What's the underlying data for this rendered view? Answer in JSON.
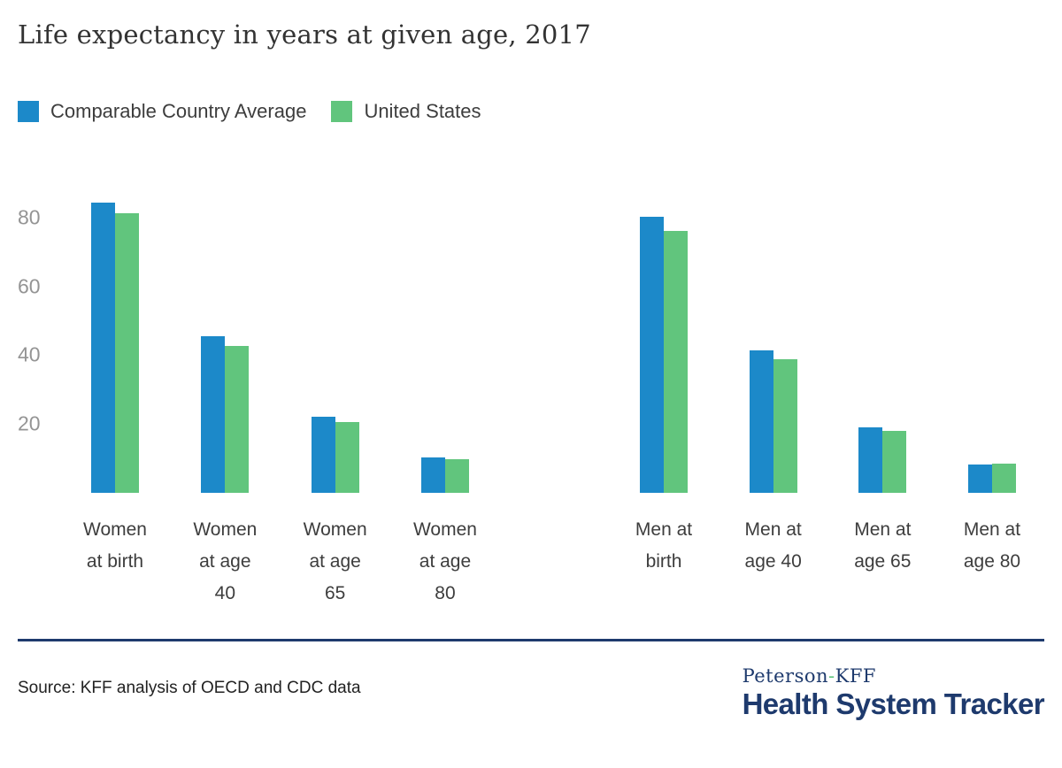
{
  "title": "Life expectancy in years at given age, 2017",
  "colors": {
    "blue": "#1c89c9",
    "green": "#61c57d",
    "navy": "#1e3a6d",
    "tick_gray": "#949494",
    "text_dark": "#3d3d3d"
  },
  "chart_data": {
    "type": "bar",
    "title": "Life expectancy in years at given age, 2017",
    "categories": [
      "Women at birth",
      "Women at age 40",
      "Women at age 65",
      "Women at age 80",
      "Men at birth",
      "Men at age 40",
      "Men at age 65",
      "Men at age 80"
    ],
    "category_label_lines": [
      "Women\nat birth",
      "Women\nat age\n40",
      "Women\nat age\n65",
      "Women\nat age\n80",
      "Men at\nbirth",
      "Men at\nage 40",
      "Men at\nage 65",
      "Men at\nage 80"
    ],
    "series": [
      {
        "name": "Comparable Country Average",
        "color": "#1c89c9",
        "values": [
          84.4,
          45.4,
          22.2,
          10.3,
          80.2,
          41.3,
          19.1,
          8.3
        ]
      },
      {
        "name": "United States",
        "color": "#61c57d",
        "values": [
          81.2,
          42.7,
          20.6,
          9.7,
          76.1,
          38.8,
          18.0,
          8.4
        ]
      }
    ],
    "xlabel": "",
    "ylabel": "",
    "yticks": [
      20,
      40,
      60,
      80
    ],
    "ylim": [
      0,
      91
    ],
    "grid": false,
    "legend_position": "top-left",
    "group_split_after_index": 3
  },
  "footer": {
    "source": "Source: KFF analysis of OECD and CDC data",
    "logo": {
      "peterson": "Peterson",
      "hyphen": "-",
      "kff": "KFF",
      "line2": "Health System Tracker"
    }
  }
}
